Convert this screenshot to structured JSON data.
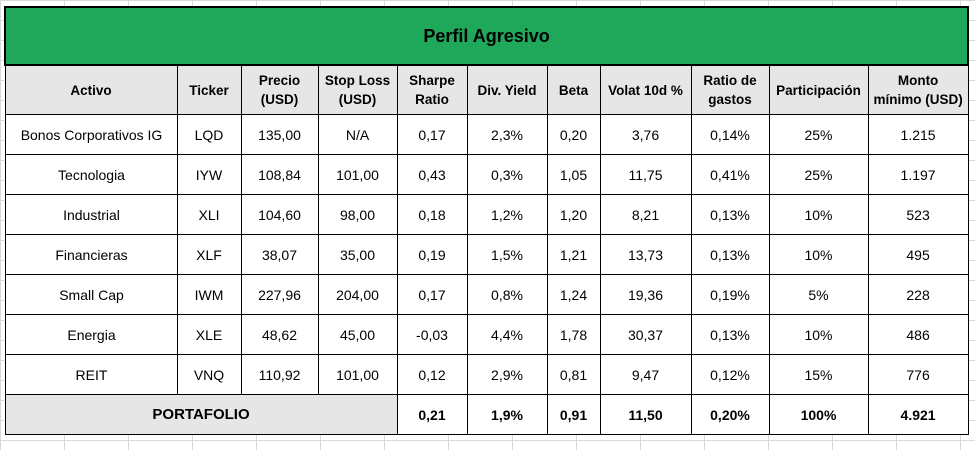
{
  "title": "Perfil Agresivo",
  "headers": {
    "activo": "Activo",
    "ticker": "Ticker",
    "precio_l1": "Precio",
    "precio_l2": "(USD)",
    "stop_l1": "Stop Loss",
    "stop_l2": "(USD)",
    "sharpe_l1": "Sharpe",
    "sharpe_l2": "Ratio",
    "yield": "Div. Yield",
    "beta": "Beta",
    "volat": "Volat 10d %",
    "ratio_l1": "Ratio de",
    "ratio_l2": "gastos",
    "part": "Participación",
    "monto_l1": "Monto",
    "monto_l2": "mínimo (USD)"
  },
  "rows": [
    {
      "activo": "Bonos Corporativos IG",
      "ticker": "LQD",
      "precio": "135,00",
      "stop": "N/A",
      "sharpe": "0,17",
      "yield": "2,3%",
      "beta": "0,20",
      "volat": "3,76",
      "ratio": "0,14%",
      "part": "25%",
      "monto": "1.215"
    },
    {
      "activo": "Tecnologia",
      "ticker": "IYW",
      "precio": "108,84",
      "stop": "101,00",
      "sharpe": "0,43",
      "yield": "0,3%",
      "beta": "1,05",
      "volat": "11,75",
      "ratio": "0,41%",
      "part": "25%",
      "monto": "1.197"
    },
    {
      "activo": "Industrial",
      "ticker": "XLI",
      "precio": "104,60",
      "stop": "98,00",
      "sharpe": "0,18",
      "yield": "1,2%",
      "beta": "1,20",
      "volat": "8,21",
      "ratio": "0,13%",
      "part": "10%",
      "monto": "523"
    },
    {
      "activo": "Financieras",
      "ticker": "XLF",
      "precio": "38,07",
      "stop": "35,00",
      "sharpe": "0,19",
      "yield": "1,5%",
      "beta": "1,21",
      "volat": "13,73",
      "ratio": "0,13%",
      "part": "10%",
      "monto": "495"
    },
    {
      "activo": "Small Cap",
      "ticker": "IWM",
      "precio": "227,96",
      "stop": "204,00",
      "sharpe": "0,17",
      "yield": "0,8%",
      "beta": "1,24",
      "volat": "19,36",
      "ratio": "0,19%",
      "part": "5%",
      "monto": "228"
    },
    {
      "activo": "Energia",
      "ticker": "XLE",
      "precio": "48,62",
      "stop": "45,00",
      "sharpe": "-0,03",
      "yield": "4,4%",
      "beta": "1,78",
      "volat": "30,37",
      "ratio": "0,13%",
      "part": "10%",
      "monto": "486"
    },
    {
      "activo": "REIT",
      "ticker": "VNQ",
      "precio": "110,92",
      "stop": "101,00",
      "sharpe": "0,12",
      "yield": "2,9%",
      "beta": "0,81",
      "volat": "9,47",
      "ratio": "0,12%",
      "part": "15%",
      "monto": "776"
    }
  ],
  "total": {
    "label": "PORTAFOLIO",
    "sharpe": "0,21",
    "yield": "1,9%",
    "beta": "0,91",
    "volat": "11,50",
    "ratio": "0,20%",
    "part": "100%",
    "monto": "4.921"
  }
}
